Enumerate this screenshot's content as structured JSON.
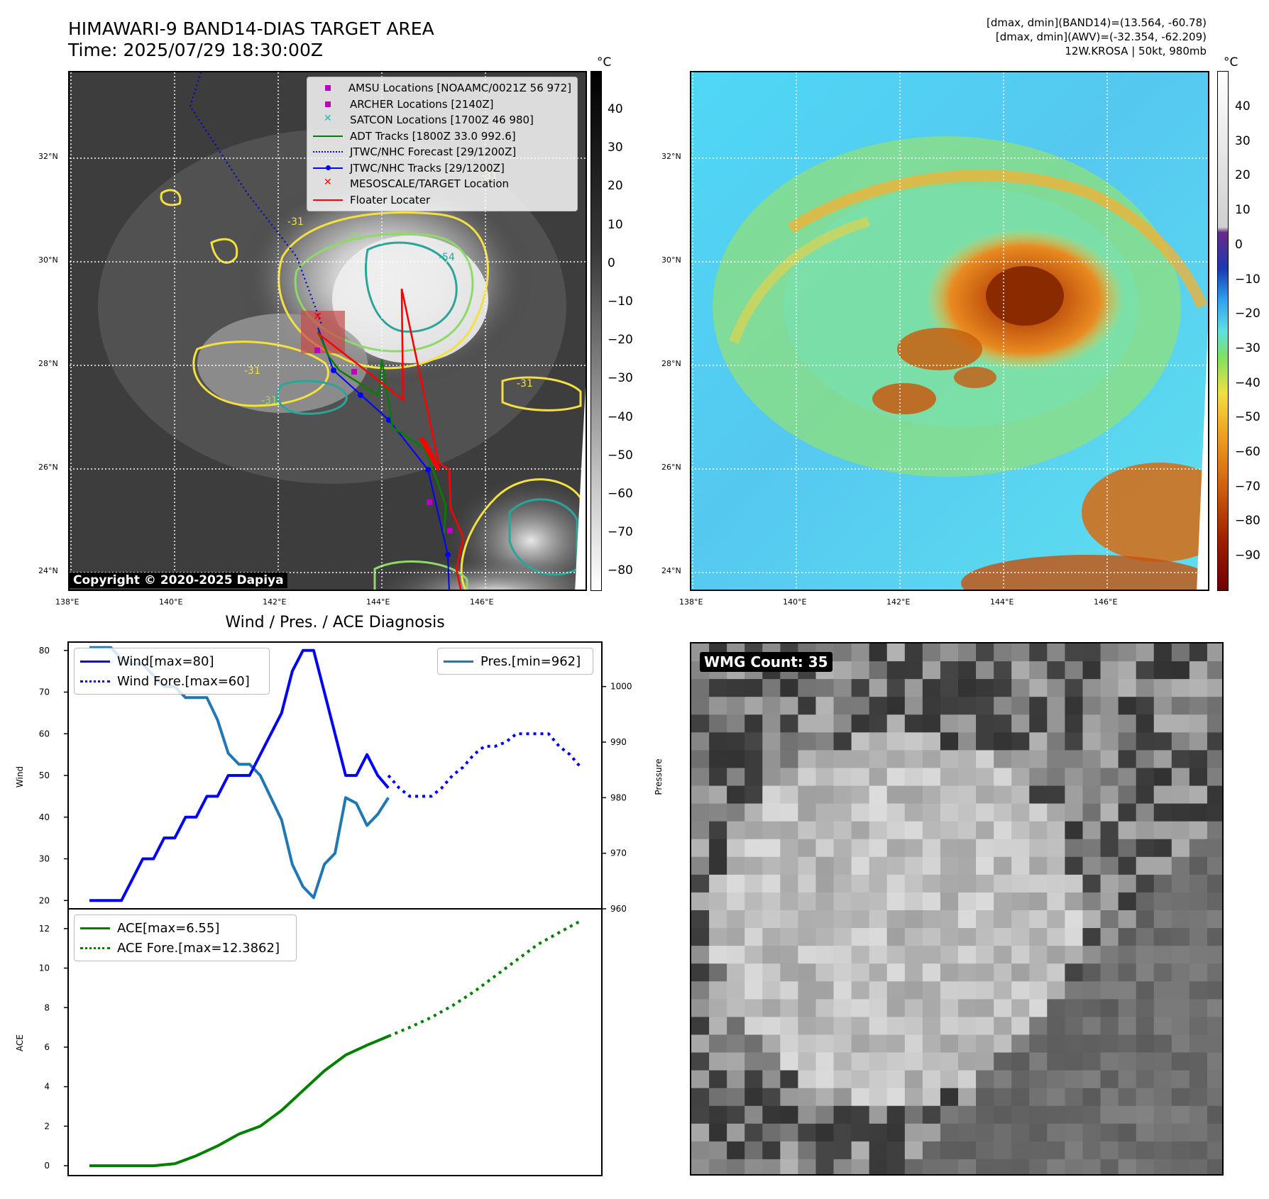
{
  "header": {
    "title_line1": "HIMAWARI-9 BAND14-DIAS TARGET AREA",
    "title_line2": "Time: 2025/07/29 18:30:00Z",
    "info_line1": "[dmax, dmin](BAND14)=(13.564, -60.78)",
    "info_line2": "[dmax, dmin](AWV)=(-32.354, -62.209)",
    "info_line3": "12W.KROSA | 50kt, 980mb"
  },
  "map_axes": {
    "lon_ticks": [
      "138°E",
      "140°E",
      "142°E",
      "144°E",
      "146°E"
    ],
    "lat_ticks": [
      "32°N",
      "30°N",
      "28°N",
      "26°N",
      "24°N"
    ]
  },
  "colorbar_left": {
    "unit": "°C",
    "ticks": [
      "40",
      "30",
      "20",
      "10",
      "0",
      "−10",
      "−20",
      "−30",
      "−40",
      "−50",
      "−60",
      "−70",
      "−80"
    ]
  },
  "colorbar_right": {
    "unit": "°C",
    "ticks": [
      "40",
      "30",
      "20",
      "10",
      "0",
      "−10",
      "−20",
      "−30",
      "−40",
      "−50",
      "−60",
      "−70",
      "−80",
      "−90"
    ]
  },
  "map_legend": [
    {
      "label": "AMSU Locations [NOAAMC/0021Z 56 972]",
      "marker": "square",
      "color": "#c000c0"
    },
    {
      "label": "ARCHER Locations [2140Z]",
      "marker": "square",
      "color": "#c000c0"
    },
    {
      "label": "SATCON Locations [1700Z 46 980]",
      "marker": "x",
      "color": "#17b8b8"
    },
    {
      "label": "ADT Tracks [1800Z 33.0 992.6]",
      "marker": "line",
      "color": "#007f00"
    },
    {
      "label": "JTWC/NHC Forecast [29/1200Z]",
      "marker": "dotted",
      "color": "#0000ff"
    },
    {
      "label": "JTWC/NHC Tracks [29/1200Z]",
      "marker": "line-dot",
      "color": "#0000ff"
    },
    {
      "label": "MESOSCALE/TARGET Location",
      "marker": "x",
      "color": "#ff0000"
    },
    {
      "label": "Floater Locater",
      "marker": "line",
      "color": "#ff0000"
    }
  ],
  "contour_labels": [
    "-31",
    "-31",
    "-54",
    "-31",
    "-31",
    "-31",
    "-31"
  ],
  "copyright": "Copyright © 2020-2025 Dapiya",
  "wmg_count": "WMG Count: 35",
  "chart_data": [
    {
      "type": "line",
      "title": "Wind / Pres. / ACE Diagnosis",
      "ylabel": "Wind",
      "ylabel2": "Pressure",
      "ylim": [
        18,
        82
      ],
      "ylim2": [
        960,
        1008
      ],
      "yticks": [
        "80",
        "70",
        "60",
        "50",
        "40",
        "30",
        "20"
      ],
      "y2ticks": [
        "1000",
        "990",
        "980",
        "970",
        "960"
      ],
      "series": [
        {
          "name": "Wind[max=80]",
          "style": "solid",
          "color": "#0000ff",
          "x": [
            0,
            1,
            2,
            3,
            4,
            5,
            6,
            7,
            8,
            9,
            10,
            11,
            12,
            13,
            14,
            15,
            16,
            17,
            18,
            19,
            20,
            21,
            22,
            23,
            24,
            25,
            26,
            27,
            28
          ],
          "values": [
            20,
            20,
            20,
            20,
            25,
            30,
            30,
            35,
            35,
            40,
            40,
            45,
            45,
            50,
            50,
            50,
            55,
            60,
            65,
            75,
            80,
            80,
            70,
            60,
            50,
            50,
            55,
            50,
            47
          ]
        },
        {
          "name": "Wind Fore.[max=60]",
          "style": "dotted",
          "color": "#0000ff",
          "x": [
            28,
            29,
            30,
            31,
            32,
            33,
            34,
            35,
            36,
            37,
            38,
            39,
            40,
            41,
            42,
            43,
            44,
            45,
            46
          ],
          "values": [
            50,
            47,
            45,
            45,
            45,
            47,
            50,
            52,
            55,
            57,
            57,
            58,
            60,
            60,
            60,
            60,
            57,
            55,
            52
          ]
        },
        {
          "name": "Pres.[min=962]",
          "style": "solid",
          "color": "#1f77b4",
          "axis": "right",
          "x": [
            0,
            1,
            2,
            3,
            4,
            5,
            6,
            7,
            8,
            9,
            10,
            11,
            12,
            13,
            14,
            15,
            16,
            17,
            18,
            19,
            20,
            21,
            22,
            23,
            24,
            25,
            26,
            27,
            28
          ],
          "values": [
            1007,
            1007,
            1007,
            1005,
            1004,
            1004,
            1002,
            1000,
            1000,
            998,
            998,
            998,
            994,
            988,
            986,
            986,
            984,
            980,
            976,
            968,
            964,
            962,
            968,
            970,
            980,
            979,
            975,
            977,
            980
          ]
        }
      ]
    },
    {
      "type": "line",
      "ylabel": "ACE",
      "ylim": [
        -0.5,
        13
      ],
      "yticks": [
        "12",
        "10",
        "8",
        "6",
        "4",
        "2",
        "0"
      ],
      "series": [
        {
          "name": "ACE[max=6.55]",
          "style": "solid",
          "color": "#008000",
          "x": [
            0,
            2,
            4,
            6,
            8,
            10,
            12,
            14,
            16,
            18,
            20,
            22,
            24,
            26,
            28
          ],
          "values": [
            0,
            0,
            0,
            0,
            0.1,
            0.5,
            1.0,
            1.6,
            2.0,
            2.8,
            3.8,
            4.8,
            5.6,
            6.1,
            6.55
          ]
        },
        {
          "name": "ACE Fore.[max=12.3862]",
          "style": "dotted",
          "color": "#008000",
          "x": [
            28,
            30,
            32,
            34,
            36,
            38,
            40,
            42,
            44,
            46
          ],
          "values": [
            6.55,
            7.0,
            7.5,
            8.1,
            8.8,
            9.6,
            10.4,
            11.2,
            11.8,
            12.39
          ]
        }
      ]
    }
  ]
}
